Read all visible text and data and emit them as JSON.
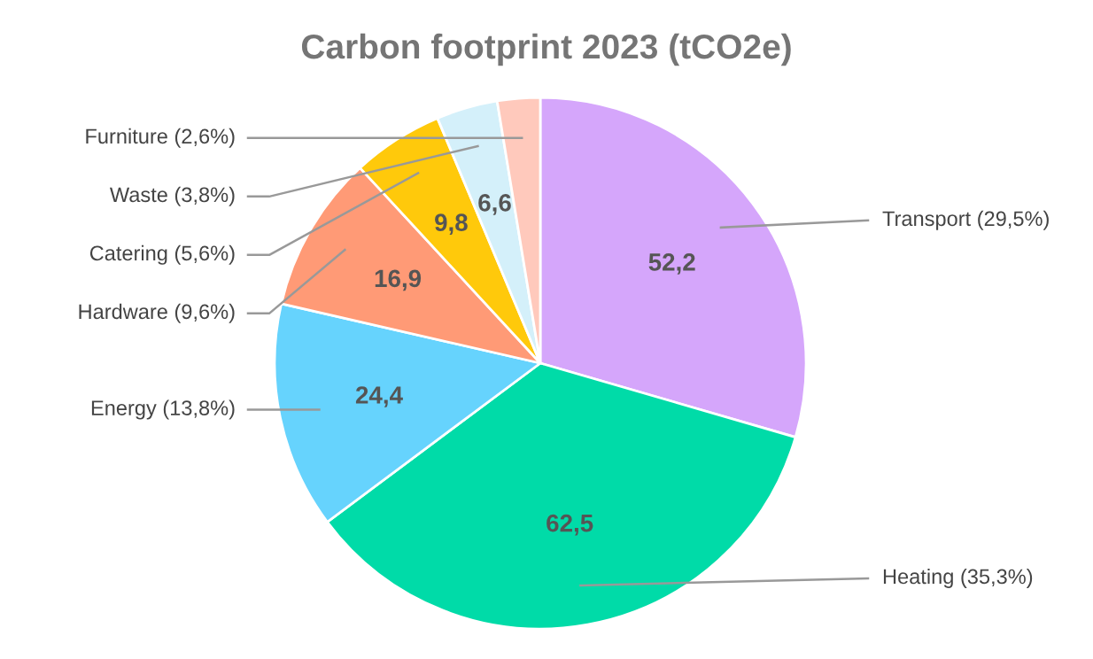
{
  "chart_data": {
    "type": "pie",
    "title": "Carbon footprint 2023 (tCO2e)",
    "categories": [
      "Transport (29,5%)",
      "Heating (35,3%)",
      "Energy (13,8%)",
      "Hardware (9,6%)",
      "Catering (5,6%)",
      "Waste (3,8%)",
      "Furniture (2,6%)"
    ],
    "values": [
      52.2,
      62.5,
      24.4,
      16.9,
      9.8,
      6.6,
      4.6
    ],
    "value_labels": [
      "52,2",
      "62,5",
      "24,4",
      "16,9",
      "9,8",
      "6,6",
      null
    ],
    "colors": [
      "#d5a6fb",
      "#00dba8",
      "#66d3fd",
      "#ff9a76",
      "#ffc90b",
      "#d4f0fa",
      "#ffc9bc"
    ]
  }
}
